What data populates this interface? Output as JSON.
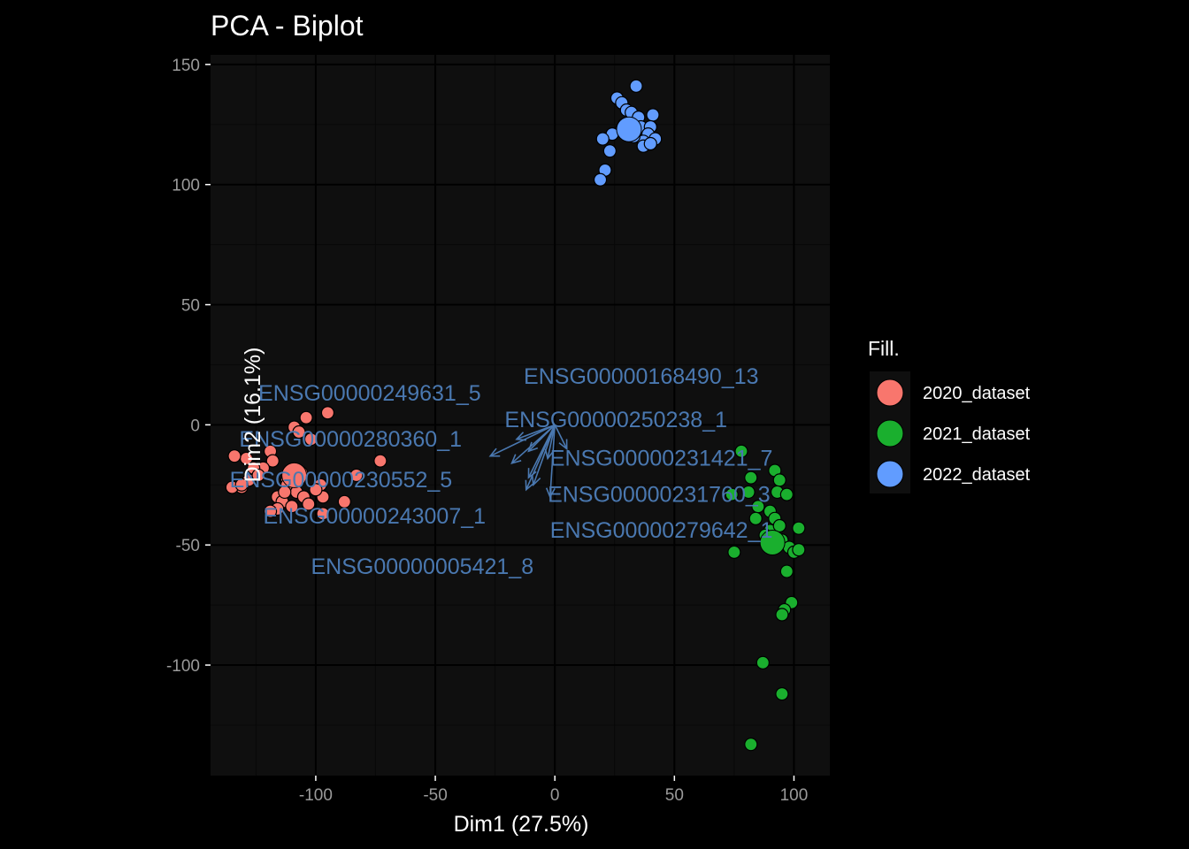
{
  "chart_data": {
    "type": "scatter",
    "title": "PCA - Biplot",
    "xlabel": "Dim1 (27.5%)",
    "ylabel": "Dim2 (16.1%)",
    "xlim": [
      -144,
      115
    ],
    "ylim": [
      -146,
      154
    ],
    "xticks": [
      -100,
      -50,
      0,
      50,
      100
    ],
    "xtick_labels": [
      "-100",
      "-50",
      "0",
      "50",
      "100"
    ],
    "yticks": [
      150,
      100,
      50,
      0,
      -50,
      -100
    ],
    "ytick_labels": [
      "150",
      "100",
      "50",
      "0",
      "-50",
      "-100"
    ],
    "grid": true,
    "legend": {
      "title": "Fill.",
      "position": "right",
      "entries": [
        "2020_dataset",
        "2021_dataset",
        "2022_dataset"
      ]
    },
    "colors": {
      "2020_dataset": "#F8766D",
      "2021_dataset": "#1AAF2E",
      "2022_dataset": "#619CFF",
      "arrow": "#4A78B0",
      "panel": "#0F0F0F",
      "grid_major": "#000000",
      "grid_minor": "#080808",
      "text": "#FFFFFF",
      "tick_text": "#9A9A9A"
    },
    "series": [
      {
        "name": "2020_dataset",
        "centroid": [
          -109,
          -21
        ],
        "points": [
          [
            -95,
            5
          ],
          [
            -104,
            3
          ],
          [
            -109,
            -1
          ],
          [
            -107,
            -3
          ],
          [
            -102,
            -6
          ],
          [
            -119,
            -11
          ],
          [
            -129,
            -14
          ],
          [
            -134,
            -13
          ],
          [
            -118,
            -15
          ],
          [
            -122,
            -18
          ],
          [
            -126,
            -18
          ],
          [
            -128,
            -23
          ],
          [
            -131,
            -26
          ],
          [
            -124,
            -21
          ],
          [
            -112,
            -23
          ],
          [
            -106,
            -20
          ],
          [
            -112,
            -25
          ],
          [
            -108,
            -28
          ],
          [
            -105,
            -30
          ],
          [
            -98,
            -25
          ],
          [
            -97,
            -30
          ],
          [
            -83,
            -21
          ],
          [
            -73,
            -15
          ],
          [
            -135,
            -26
          ],
          [
            -131,
            -25
          ],
          [
            -116,
            -30
          ],
          [
            -114,
            -32
          ],
          [
            -103,
            -33
          ],
          [
            -110,
            -34
          ],
          [
            -116,
            -35
          ],
          [
            -119,
            -36
          ],
          [
            -97,
            -37
          ],
          [
            -88,
            -32
          ],
          [
            -113,
            -28
          ],
          [
            -100,
            -27
          ]
        ]
      },
      {
        "name": "2021_dataset",
        "centroid": [
          91,
          -49
        ],
        "points": [
          [
            78,
            -11
          ],
          [
            82,
            -22
          ],
          [
            92,
            -19
          ],
          [
            94,
            -23
          ],
          [
            81,
            -28
          ],
          [
            93,
            -28
          ],
          [
            97,
            -29
          ],
          [
            85,
            -34
          ],
          [
            90,
            -36
          ],
          [
            84,
            -39
          ],
          [
            92,
            -39
          ],
          [
            102,
            -43
          ],
          [
            90,
            -44
          ],
          [
            95,
            -48
          ],
          [
            98,
            -51
          ],
          [
            100,
            -53
          ],
          [
            102,
            -52
          ],
          [
            75,
            -53
          ],
          [
            74,
            -29
          ],
          [
            97,
            -61
          ],
          [
            99,
            -74
          ],
          [
            96,
            -77
          ],
          [
            95,
            -79
          ],
          [
            87,
            -99
          ],
          [
            95,
            -112
          ],
          [
            82,
            -133
          ],
          [
            88,
            -46
          ],
          [
            94,
            -42
          ]
        ]
      },
      {
        "name": "2022_dataset",
        "centroid": [
          31,
          123
        ],
        "points": [
          [
            34,
            141
          ],
          [
            26,
            136
          ],
          [
            28,
            134
          ],
          [
            30,
            131
          ],
          [
            32,
            130
          ],
          [
            35,
            128
          ],
          [
            41,
            129
          ],
          [
            28,
            123
          ],
          [
            24,
            121
          ],
          [
            36,
            124
          ],
          [
            40,
            124
          ],
          [
            39,
            121
          ],
          [
            42,
            119
          ],
          [
            37,
            118
          ],
          [
            20,
            119
          ],
          [
            37,
            116
          ],
          [
            40,
            117
          ],
          [
            23,
            114
          ],
          [
            21,
            106
          ],
          [
            19,
            102
          ],
          [
            33,
            120
          ],
          [
            29,
            125
          ]
        ]
      }
    ],
    "arrows": [
      {
        "label": "ENSG00000168490_13",
        "end": [
          -11,
          -11
        ],
        "label_pos": [
          -13,
          17
        ]
      },
      {
        "label": "ENSG00000249631_5",
        "end": [
          -16,
          -6
        ],
        "label_pos": [
          -124,
          10
        ]
      },
      {
        "label": "ENSG00000280360_1",
        "end": [
          -27,
          -13
        ],
        "label_pos": [
          -132,
          -9
        ]
      },
      {
        "label": "ENSG00000250238_1",
        "end": [
          5,
          -10
        ],
        "label_pos": [
          -21,
          -1
        ]
      },
      {
        "label": "ENSG00000231421_7",
        "end": [
          -3,
          -14
        ],
        "label_pos": [
          -2,
          -17
        ]
      },
      {
        "label": "ENSG00000230552_5",
        "end": [
          -18,
          -16
        ],
        "label_pos": [
          -136,
          -26
        ]
      },
      {
        "label": "ENSG00000231760_3",
        "end": [
          -2,
          -30
        ],
        "label_pos": [
          -3,
          -32
        ]
      },
      {
        "label": "ENSG00000243007_1",
        "end": [
          -12,
          -27
        ],
        "label_pos": [
          -122,
          -41
        ]
      },
      {
        "label": "ENSG00000279642_1",
        "end": [
          -11,
          -22
        ],
        "label_pos": [
          -2,
          -47
        ]
      },
      {
        "label": "ENSG00000005421_8",
        "end": [
          -9,
          -25
        ],
        "label_pos": [
          -102,
          -62
        ]
      }
    ]
  }
}
